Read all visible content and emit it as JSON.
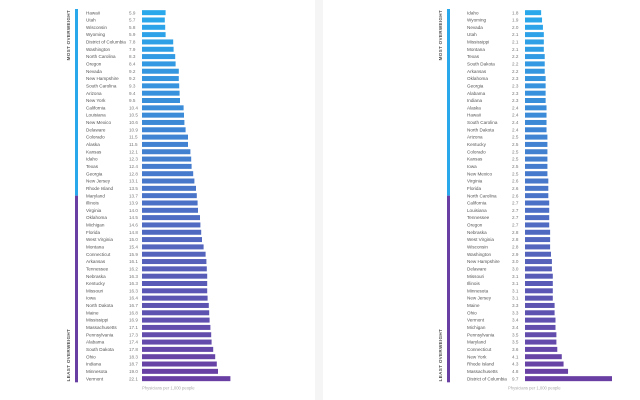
{
  "chart_data": [
    {
      "type": "bar",
      "orientation": "horizontal",
      "top_label": "MOST OVERWEIGHT",
      "bottom_label": "LEAST OVERWEIGHT",
      "footnote": "Physicians per 1,000 people",
      "color_top": "#2aa8ec",
      "color_bottom": "#6a3fa3",
      "xlim": [
        0,
        23
      ],
      "categories": [
        "Hawaii",
        "Utah",
        "Wisconsin",
        "Wyoming",
        "District of Columbia",
        "Washington",
        "North Carolina",
        "Oregon",
        "Nevada",
        "New Hampshire",
        "South Carolina",
        "Arizona",
        "New York",
        "California",
        "Louisiana",
        "New Mexico",
        "Delaware",
        "Colorado",
        "Alaska",
        "Kansas",
        "Idaho",
        "Texas",
        "Georgia",
        "New Jersey",
        "Rhode Island",
        "Maryland",
        "Illinois",
        "Virginia",
        "Oklahoma",
        "Michigan",
        "Florida",
        "West Virginia",
        "Montana",
        "Connecticut",
        "Arkansas",
        "Tennessee",
        "Nebraska",
        "Kentucky",
        "Missouri",
        "Iowa",
        "North Dakota",
        "Maine",
        "Mississippi",
        "Massachusetts",
        "Pennsylvania",
        "Alabama",
        "South Dakota",
        "Ohio",
        "Indiana",
        "Minnesota",
        "Vermont"
      ],
      "values": [
        5.9,
        5.7,
        5.8,
        5.9,
        7.8,
        7.9,
        8.3,
        8.4,
        9.2,
        9.2,
        9.3,
        9.4,
        9.5,
        10.4,
        10.5,
        10.6,
        10.9,
        11.5,
        11.5,
        12.1,
        12.3,
        12.4,
        12.8,
        13.1,
        13.5,
        13.7,
        13.9,
        14.0,
        14.5,
        14.6,
        14.8,
        15.0,
        15.4,
        15.9,
        16.1,
        16.2,
        16.3,
        16.3,
        16.3,
        16.4,
        16.7,
        16.8,
        16.9,
        17.1,
        17.3,
        17.4,
        17.8,
        18.3,
        18.7,
        19.0,
        22.1
      ]
    },
    {
      "type": "bar",
      "orientation": "horizontal",
      "top_label": "MOST OVERWEIGHT",
      "bottom_label": "LEAST OVERWEIGHT",
      "footnote": "Physicians per 1,000 people",
      "color_top": "#2aa8ec",
      "color_bottom": "#6a3fa3",
      "xlim": [
        0,
        9.7
      ],
      "categories": [
        "Idaho",
        "Wyoming",
        "Nevada",
        "Utah",
        "Mississippi",
        "Montana",
        "Texas",
        "South Dakota",
        "Arkansas",
        "Oklahoma",
        "Georgia",
        "Alabama",
        "Indiana",
        "Alaska",
        "Hawaii",
        "South Carolina",
        "North Dakota",
        "Arizona",
        "Kentucky",
        "Colorado",
        "Kansas",
        "Iowa",
        "New Mexico",
        "Virginia",
        "Florida",
        "North Carolina",
        "California",
        "Louisiana",
        "Tennessee",
        "Oregon",
        "Nebraska",
        "West Virginia",
        "Wisconsin",
        "Washington",
        "New Hampshire",
        "Delaware",
        "Missouri",
        "Illinois",
        "Minnesota",
        "New Jersey",
        "Maine",
        "Ohio",
        "Vermont",
        "Michigan",
        "Pennsylvania",
        "Maryland",
        "Connecticut",
        "New York",
        "Rhode Island",
        "Massachusetts",
        "District of Columbia"
      ],
      "values": [
        1.8,
        1.9,
        2.0,
        2.1,
        2.1,
        2.1,
        2.2,
        2.2,
        2.2,
        2.3,
        2.3,
        2.3,
        2.3,
        2.4,
        2.4,
        2.4,
        2.4,
        2.5,
        2.5,
        2.5,
        2.5,
        2.5,
        2.5,
        2.6,
        2.6,
        2.6,
        2.7,
        2.7,
        2.7,
        2.7,
        2.8,
        2.8,
        2.8,
        2.9,
        3.0,
        3.0,
        3.1,
        3.1,
        3.1,
        3.1,
        3.3,
        3.3,
        3.4,
        3.4,
        3.5,
        3.5,
        3.6,
        4.1,
        4.3,
        4.8,
        9.7
      ]
    }
  ]
}
